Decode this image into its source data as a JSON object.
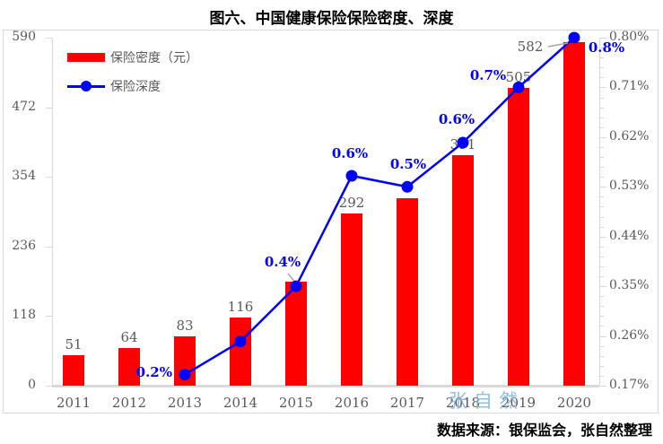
{
  "title": "图六、中国健康保险保险密度、深度",
  "source_note": "数据来源：银保监会，张自然整理",
  "watermark": "张自然",
  "legend": {
    "density_label": "保险密度（元）",
    "depth_label": "保险深度"
  },
  "colors": {
    "bar_red": "#ff0000",
    "line_blue": "#0000ff",
    "label_gray": "#595959",
    "axis_gray": "#d9d9d9",
    "leader_gray": "#a6a6a6",
    "watermark_blue": "#7eb2e2"
  },
  "chart_data": {
    "type": "bar+line combo",
    "categories": [
      "2011",
      "2012",
      "2013",
      "2014",
      "2015",
      "2016",
      "2017",
      "2018",
      "2019",
      "2020"
    ],
    "series": [
      {
        "name": "保险密度（元）",
        "type": "bar",
        "axis": "left",
        "values": [
          51,
          64,
          83,
          116,
          176,
          292,
          318,
          391,
          505,
          582
        ],
        "value_labels": [
          "51",
          "64",
          "83",
          "116",
          "",
          "292",
          "",
          "391",
          "505",
          "582"
        ]
      },
      {
        "name": "保险深度",
        "type": "line",
        "axis": "right",
        "x": [
          "2013",
          "2014",
          "2015",
          "2016",
          "2017",
          "2018",
          "2019",
          "2020"
        ],
        "values": [
          0.19,
          0.25,
          0.35,
          0.55,
          0.53,
          0.61,
          0.71,
          0.8
        ],
        "value_labels": [
          "0.2%",
          "",
          "0.4%",
          "0.6%",
          "0.5%",
          "0.6%",
          "0.7%",
          "0.8%"
        ]
      }
    ],
    "left_axis": {
      "min": 0,
      "max": 590,
      "ticks": [
        "590",
        "472",
        "354",
        "236",
        "118",
        "0"
      ]
    },
    "right_axis": {
      "min": "0.17%",
      "max": "0.80%",
      "ticks": [
        "0.80%",
        "0.71%",
        "0.62%",
        "0.53%",
        "0.44%",
        "0.35%",
        "0.26%",
        "0.17%"
      ]
    },
    "grid": false,
    "legend_position": "top-left"
  }
}
